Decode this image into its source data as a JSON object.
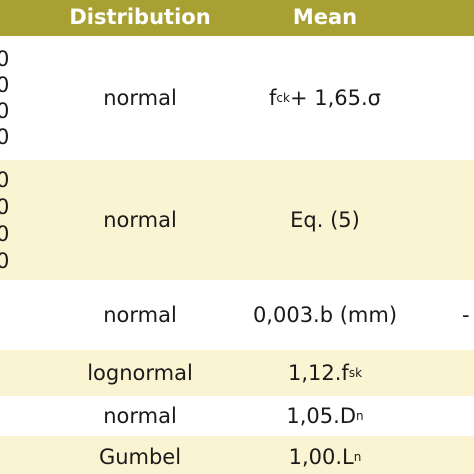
{
  "header": {
    "distribution": "Distribution",
    "mean": "Mean"
  },
  "rows": [
    {
      "left_digits": [
        "0",
        "0",
        "0",
        "0"
      ],
      "distribution": "normal",
      "mean_prefix": "f",
      "mean_sub": "ck",
      "mean_suffix": " + 1,65.σ"
    },
    {
      "left_digits": [
        "0",
        "0",
        "0",
        "0"
      ],
      "distribution": "normal",
      "mean": "Eq. (5)"
    },
    {
      "distribution": "normal",
      "mean": "0,003.b (mm)",
      "right_mark": "-"
    },
    {
      "distribution": "lognormal",
      "mean_prefix": "1,12.f",
      "mean_sub": "sk"
    },
    {
      "distribution": "normal",
      "mean_prefix": "1,05.D",
      "mean_sub": "n"
    },
    {
      "distribution": "Gumbel",
      "mean_prefix": "1,00.L",
      "mean_sub": "n"
    }
  ]
}
